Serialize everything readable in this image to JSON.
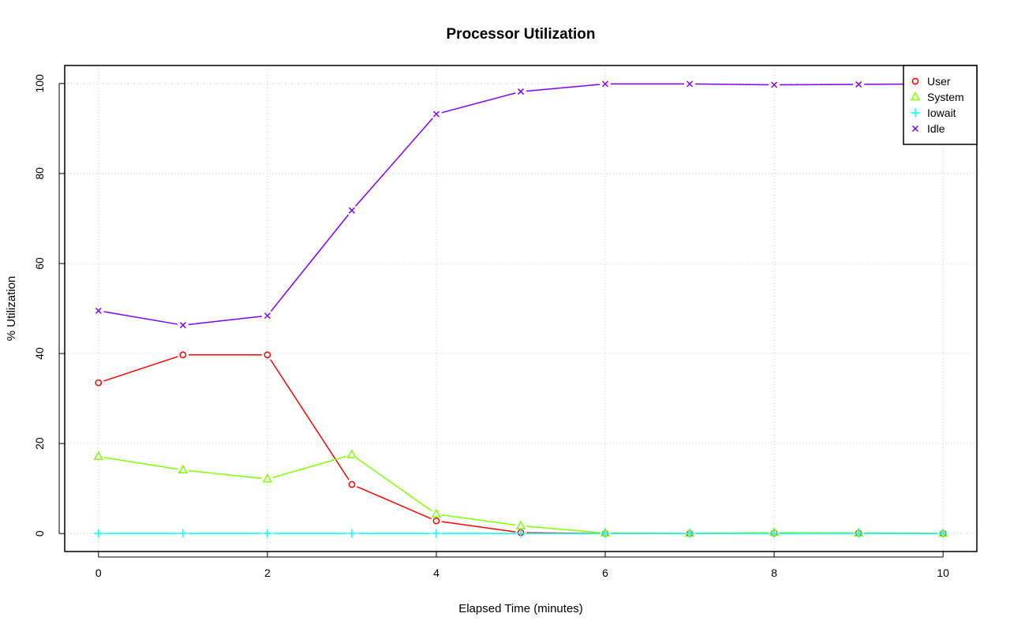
{
  "chart_data": {
    "type": "line",
    "title": "Processor Utilization",
    "xlabel": "Elapsed Time (minutes)",
    "ylabel": "% Utilization",
    "xlim": [
      -0.4,
      10.4
    ],
    "ylim": [
      -4,
      104
    ],
    "x_ticks": [
      0,
      2,
      4,
      6,
      8,
      10
    ],
    "y_ticks": [
      0,
      20,
      40,
      60,
      80,
      100
    ],
    "grid": true,
    "legend_position": "top-right",
    "x": [
      0,
      1,
      2,
      3,
      4,
      5,
      6,
      7,
      8,
      9,
      10
    ],
    "series": [
      {
        "name": "User",
        "color": "#FF0000",
        "marker": "circle",
        "values": [
          33.5,
          39.7,
          39.7,
          10.9,
          2.8,
          0.2,
          0.0,
          0.0,
          0.1,
          0.1,
          0.0
        ]
      },
      {
        "name": "System",
        "color": "#80FF00",
        "marker": "triangle",
        "values": [
          17.1,
          14.1,
          12.1,
          17.5,
          4.3,
          1.7,
          0.1,
          0.0,
          0.2,
          0.1,
          0.0
        ]
      },
      {
        "name": "Iowait",
        "color": "#00FFFF",
        "marker": "plus",
        "values": [
          0,
          0,
          0,
          0,
          0,
          0,
          0,
          0,
          0,
          0,
          0
        ]
      },
      {
        "name": "Idle",
        "color": "#8000FF",
        "marker": "cross",
        "values": [
          49.5,
          46.3,
          48.4,
          71.8,
          93.2,
          98.2,
          99.9,
          99.9,
          99.7,
          99.8,
          99.9
        ]
      }
    ]
  }
}
